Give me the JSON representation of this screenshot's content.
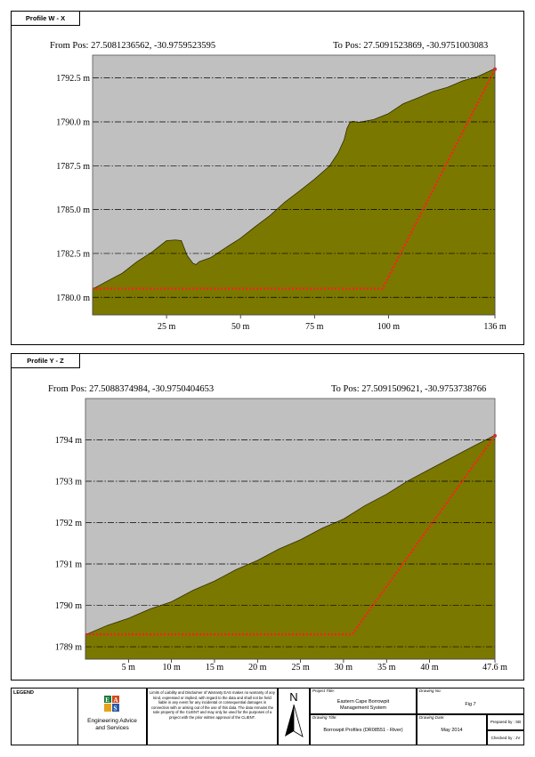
{
  "profile_wx": {
    "label": "Profile W - X",
    "from_pos": "From Pos: 27.5081236562, -30.9759523595",
    "to_pos": "To Pos: 27.5091523869, -30.9751003083"
  },
  "profile_yz": {
    "label": "Profile Y - Z",
    "from_pos": "From Pos: 27.5088374984, -30.9750404653",
    "to_pos": "To Pos: 27.5091509621, -30.9753738766"
  },
  "chart_data": [
    {
      "type": "area",
      "xlim": [
        0,
        136
      ],
      "ylim": [
        1779.0,
        1793.8
      ],
      "x_ticks": [
        25,
        50,
        75,
        100,
        136
      ],
      "x_tick_labels": [
        "25 m",
        "50 m",
        "75 m",
        "100 m",
        "136 m"
      ],
      "y_ticks": [
        1780.0,
        1782.5,
        1785.0,
        1787.5,
        1790.0,
        1792.5
      ],
      "y_tick_labels": [
        "1780.0 m",
        "1782.5 m",
        "1785.0 m",
        "1787.5 m",
        "1790.0 m",
        "1792.5 m"
      ],
      "grid": true,
      "colors": {
        "terrain": "#7b7800",
        "plot_bg": "#c0c0c0",
        "overlay": "#ff2020"
      },
      "terrain": {
        "x": [
          0,
          5,
          10,
          15,
          20,
          25,
          28,
          30,
          32,
          34,
          35,
          36,
          40,
          45,
          50,
          55,
          60,
          65,
          70,
          75,
          80,
          83,
          85,
          86,
          87,
          88,
          90,
          95,
          100,
          105,
          110,
          115,
          120,
          125,
          130,
          136
        ],
        "y": [
          1780.5,
          1780.9,
          1781.4,
          1782.0,
          1782.6,
          1783.2,
          1783.3,
          1783.2,
          1782.4,
          1781.9,
          1781.9,
          1782.0,
          1782.3,
          1782.8,
          1783.4,
          1784.0,
          1784.7,
          1785.4,
          1786.1,
          1786.7,
          1787.5,
          1788.2,
          1789.0,
          1789.6,
          1790.0,
          1790.0,
          1790.0,
          1790.1,
          1790.5,
          1791.0,
          1791.4,
          1791.7,
          1792.0,
          1792.3,
          1792.6,
          1793.0
        ]
      },
      "overlay_line": {
        "x": [
          0,
          98,
          136
        ],
        "y": [
          1780.5,
          1780.5,
          1793.0
        ]
      }
    },
    {
      "type": "area",
      "xlim": [
        0,
        47.6
      ],
      "ylim": [
        1788.7,
        1795.0
      ],
      "x_ticks": [
        5,
        10,
        15,
        20,
        25,
        30,
        35,
        40,
        47.6
      ],
      "x_tick_labels": [
        "5 m",
        "10 m",
        "15 m",
        "20 m",
        "25 m",
        "30 m",
        "35 m",
        "40 m",
        "47.6 m"
      ],
      "y_ticks": [
        1789,
        1790,
        1791,
        1792,
        1793,
        1794
      ],
      "y_tick_labels": [
        "1789 m",
        "1790 m",
        "1791 m",
        "1792 m",
        "1793 m",
        "1794 m"
      ],
      "grid": true,
      "colors": {
        "terrain": "#7b7800",
        "plot_bg": "#c0c0c0",
        "overlay": "#ff2020"
      },
      "terrain": {
        "x": [
          0,
          2.5,
          5,
          7.5,
          10,
          12.5,
          15,
          17.5,
          20,
          22.5,
          25,
          27.5,
          30,
          32.5,
          35,
          37.5,
          40,
          42.5,
          45,
          47.6
        ],
        "y": [
          1789.3,
          1789.5,
          1789.7,
          1789.9,
          1790.1,
          1790.35,
          1790.6,
          1790.85,
          1791.1,
          1791.35,
          1791.6,
          1791.85,
          1792.1,
          1792.4,
          1792.7,
          1793.0,
          1793.3,
          1793.55,
          1793.85,
          1794.1
        ]
      },
      "overlay_line": {
        "x": [
          0,
          31,
          47.6
        ],
        "y": [
          1789.3,
          1789.3,
          1794.1
        ]
      }
    }
  ],
  "legend": {
    "title": "LEGEND",
    "company_line1": "Engineering Advice",
    "company_line2": "and Services",
    "disclaimer": "Limits of Liability and Disclaimer of Warranty EAS makes no warranty of any kind, expressed or implied, with regard to the data and shall not be held liable in any event for any incidental or consequential damages in connection with or arising out of the use of this data. The data remains the sole property of the CLIENT and may only be used for the purposes of a project with the prior written approval of the CLIENT.",
    "north": "N",
    "project_title_label": "Project Title:",
    "project_title_line1": "Eastern Cape Borrowpit",
    "project_title_line2": "Management System",
    "drawing_title_label": "Drawing Title:",
    "drawing_title": "Borrowpit Profiles (DR08551 - River)",
    "drawing_no_label": "Drawing No:",
    "drawing_no": "Fig 7",
    "drawing_date_label": "Drawing Date:",
    "drawing_date": "May 2014",
    "prepared_by": "Prepared by : SB",
    "checked_by": "Checked by : JV"
  }
}
